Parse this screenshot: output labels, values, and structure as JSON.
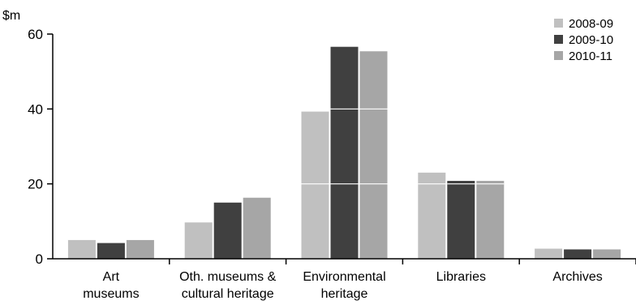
{
  "chart_data": {
    "type": "bar",
    "unit_label": "$m",
    "categories": [
      [
        "Art",
        "museums"
      ],
      [
        "Oth. museums &",
        "cultural heritage"
      ],
      [
        "Environmental",
        "heritage"
      ],
      [
        "Libraries"
      ],
      [
        "Archives"
      ]
    ],
    "series": [
      {
        "name": "2008-09",
        "color": "#c0c0c0",
        "values": [
          5.0,
          9.7,
          39.3,
          23.0,
          2.7
        ]
      },
      {
        "name": "2009-10",
        "color": "#404040",
        "values": [
          4.2,
          15.0,
          56.6,
          20.8,
          2.5
        ]
      },
      {
        "name": "2010-11",
        "color": "#a6a6a6",
        "values": [
          5.0,
          16.3,
          55.4,
          20.8,
          2.5
        ]
      }
    ],
    "y_ticks": [
      0,
      20,
      40,
      60
    ],
    "ylim": [
      0,
      60
    ],
    "grid": false,
    "legend_position": "top-right"
  }
}
